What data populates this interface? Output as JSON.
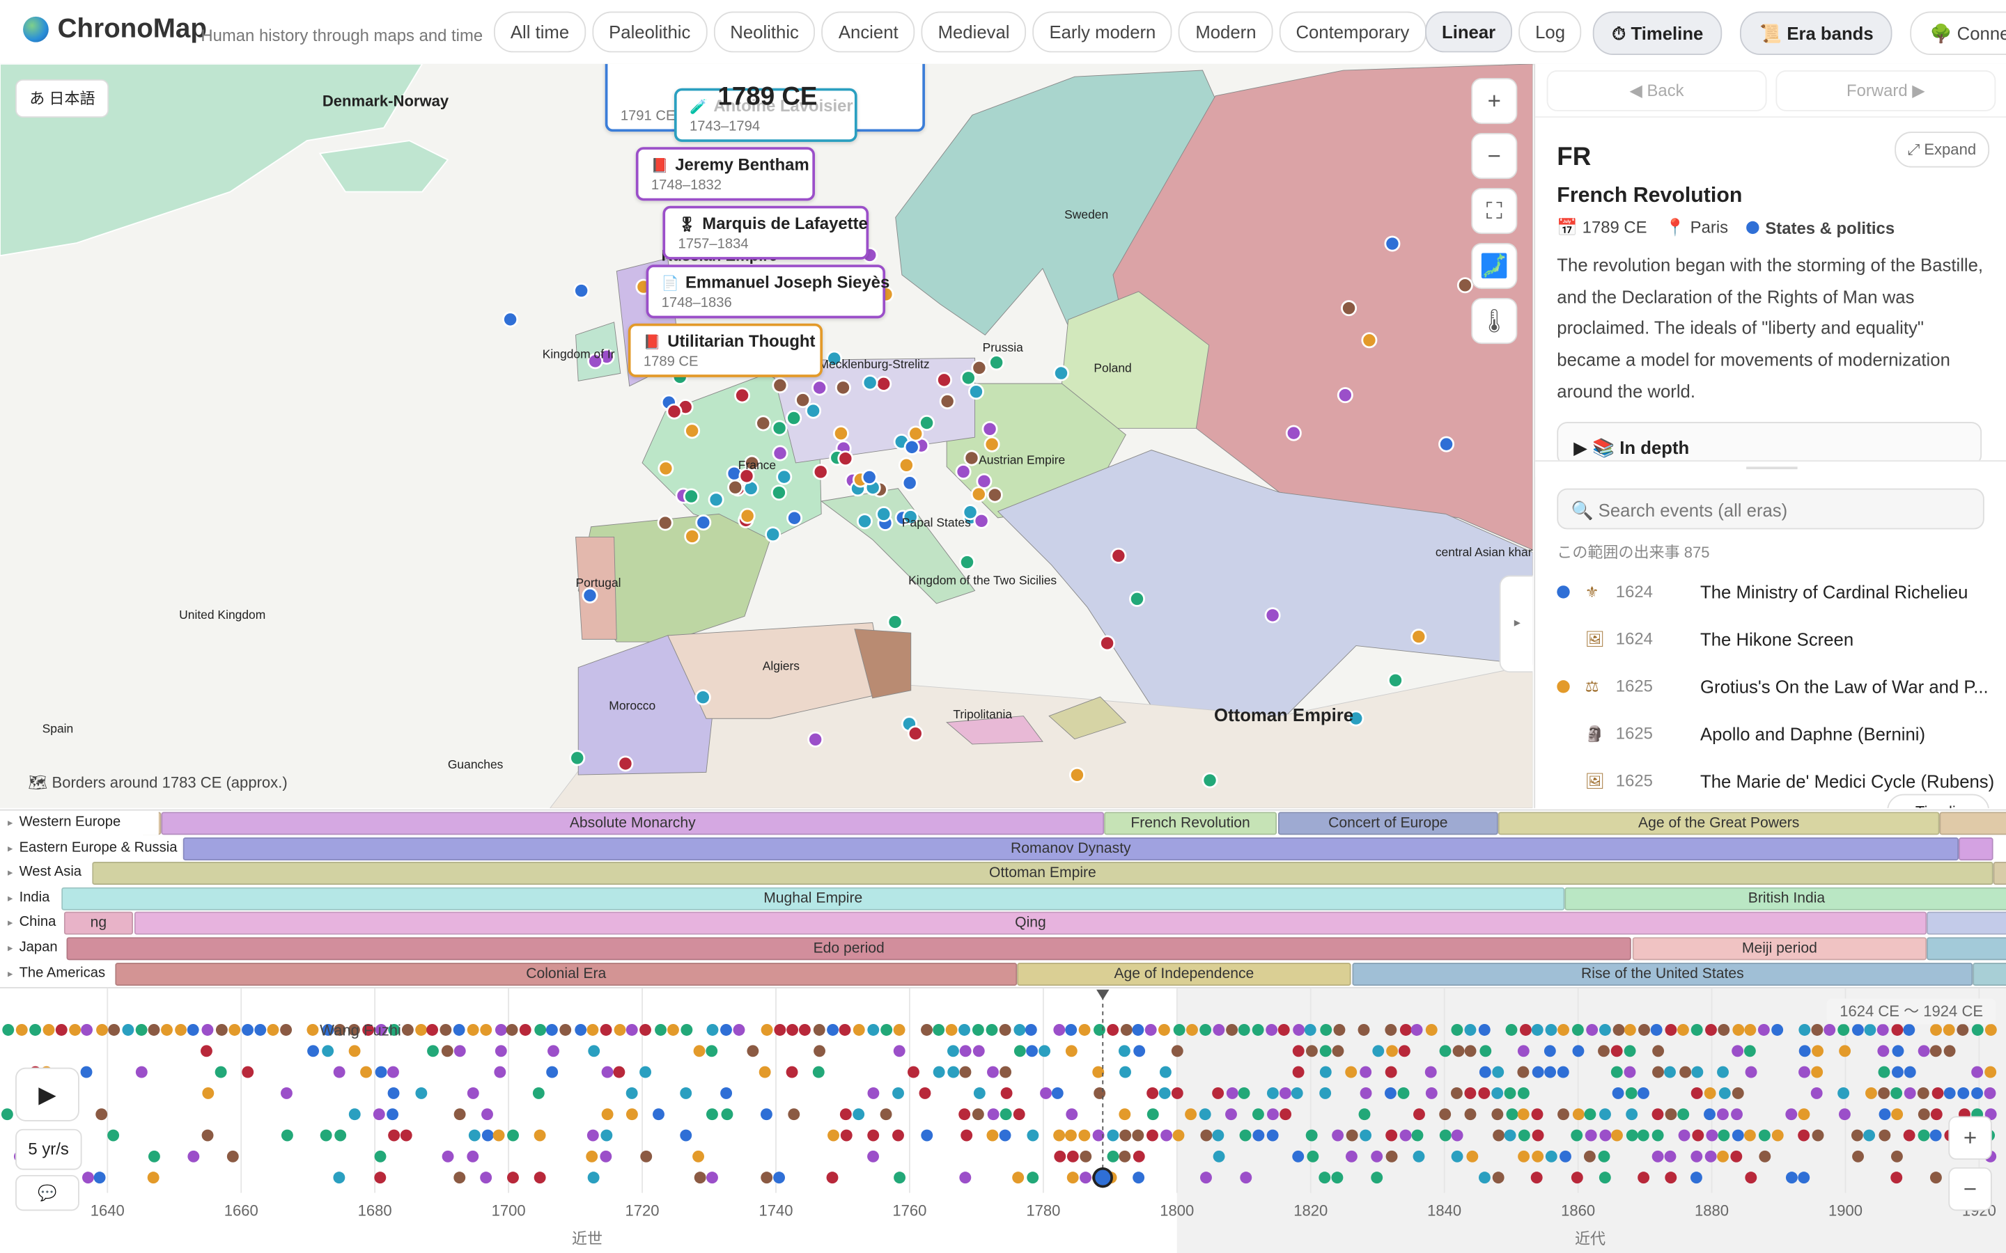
{
  "header": {
    "brand": "ChronoMap",
    "tagline": "Human history through maps and time",
    "eras": [
      "All time",
      "Paleolithic",
      "Neolithic",
      "Ancient",
      "Medieval",
      "Early modern",
      "Modern",
      "Contemporary"
    ],
    "scales": [
      {
        "label": "Linear",
        "active": true
      },
      {
        "label": "Log",
        "active": false
      }
    ],
    "toggles": [
      {
        "label": "⏱ Timeline",
        "active": true
      },
      {
        "label": "📜 Era bands",
        "active": true
      },
      {
        "label": "🌳 Connec",
        "active": false
      }
    ]
  },
  "map": {
    "language": "あ 日本語",
    "current_year": "1789 CE",
    "footer": "🗺 Borders around 1783 CE (approx.)",
    "labels": [
      "Denmark-Norway",
      "Sweden",
      "Russian Empire",
      "Prussia",
      "Poland",
      "Mecklenburg-Strelitz",
      "Kingdom of Ir",
      "France",
      "Austrian Empire",
      "Papal States",
      "Kingdom of the Two Sicilies",
      "Portugal",
      "United Kingdom",
      "Spain",
      "Algiers",
      "Morocco",
      "Tripolitania",
      "Guanches",
      "Ottoman Empire",
      "central Asian khan"
    ],
    "cards": [
      {
        "dates": "1791 CE",
        "color": "#3b7dd8"
      },
      {
        "title": "Antoine Lavoisier",
        "dates": "1743–1794",
        "icon": "🧪",
        "color": "#2a9fc0"
      },
      {
        "title": "Jeremy Bentham",
        "dates": "1748–1832",
        "icon": "📕",
        "color": "#9b4fc9"
      },
      {
        "title": "Marquis de Lafayette",
        "dates": "1757–1834",
        "icon": "🎖",
        "color": "#9b4fc9"
      },
      {
        "title": "Emmanuel Joseph Sieyès",
        "dates": "1748–1836",
        "icon": "📄",
        "color": "#9b4fc9"
      },
      {
        "title": "Utilitarian Thought",
        "dates": "1789 CE",
        "icon": "📕",
        "color": "#e39a2a"
      }
    ]
  },
  "panel": {
    "back": "◀ Back",
    "forward": "Forward ▶",
    "expand": "⤢ Expand",
    "code": "FR",
    "title": "French Revolution",
    "date": "📅 1789 CE",
    "place": "📍 Paris",
    "category": "States & politics",
    "category_color": "#2f6fd6",
    "description": "The revolution began with the storming of the Bastille, and the Declaration of the Rights of Man was proclaimed. The ideals of \"liberty and equality\" became a model for movements of modernization around the world.",
    "in_depth": "In depth",
    "search_placeholder": "Search events (all eras)",
    "count": "この範囲の出来事 875",
    "events": [
      {
        "icon": "⚜",
        "year": "1624",
        "title": "The Ministry of Cardinal Richelieu",
        "color": "#2f6fd6"
      },
      {
        "icon": "🖼",
        "year": "1624",
        "title": "The Hikone Screen"
      },
      {
        "icon": "⚖",
        "year": "1625",
        "title": "Grotius's On the Law of War and P...",
        "color": "#e39a2a"
      },
      {
        "icon": "🗿",
        "year": "1625",
        "title": "Apollo and Daphne (Bernini)"
      },
      {
        "icon": "🖼",
        "year": "1625",
        "title": "The Marie de' Medici Cycle (Rubens)"
      }
    ],
    "timeline_button": "▾ Timeline"
  },
  "era_bands": [
    {
      "region": "Western Europe",
      "bands": [
        {
          "name": "Absolute Monarchy",
          "color": "#d5a8e2"
        },
        {
          "name": "French Revolution",
          "color": "#c6e3b6"
        },
        {
          "name": "Concert of Europe",
          "color": "#9eaad2"
        },
        {
          "name": "Age of the Great Powers",
          "color": "#d8d5a2"
        }
      ]
    },
    {
      "region": "Eastern Europe & Russia",
      "bands": [
        {
          "name": "Romanov Dynasty",
          "color": "#a0a2e0"
        }
      ]
    },
    {
      "region": "West Asia",
      "bands": [
        {
          "name": "Ottoman Empire",
          "color": "#d2d2a2"
        }
      ]
    },
    {
      "region": "India",
      "bands": [
        {
          "name": "Mughal Empire",
          "color": "#b5e7e6"
        },
        {
          "name": "British India",
          "color": "#bae7c4"
        }
      ]
    },
    {
      "region": "China",
      "bands": [
        {
          "name": "ng",
          "color": "#e8b3c8"
        },
        {
          "name": "Qing",
          "color": "#e7b3de"
        }
      ]
    },
    {
      "region": "Japan",
      "bands": [
        {
          "name": "Edo period",
          "color": "#d28e9c"
        },
        {
          "name": "Meiji period",
          "color": "#f0c3c3"
        }
      ]
    },
    {
      "region": "The Americas",
      "bands": [
        {
          "name": "Colonial Era",
          "color": "#d39494"
        },
        {
          "name": "Age of Independence",
          "color": "#dacf94"
        },
        {
          "name": "Rise of the United States",
          "color": "#a0bfd6"
        }
      ]
    }
  ],
  "timeline": {
    "range": "1624 CE 〜 1924 CE",
    "speed": "5 yr/s",
    "highlight": "Wang Fuzhi",
    "years": [
      "1640",
      "1660",
      "1680",
      "1700",
      "1720",
      "1740",
      "1760",
      "1780",
      "1800",
      "1820",
      "1840",
      "1860",
      "1880",
      "1900",
      "1920"
    ],
    "periods": [
      "近世",
      "近代"
    ]
  }
}
